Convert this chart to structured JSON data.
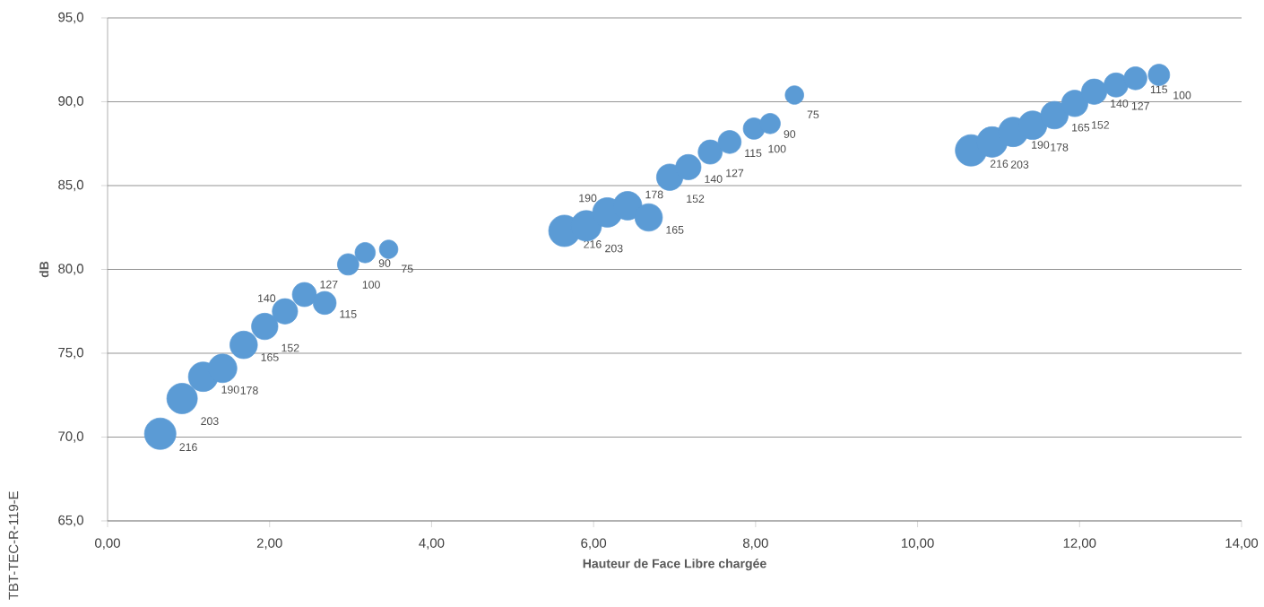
{
  "chart_data": {
    "type": "bubble",
    "xlabel": "Hauteur de Face Libre chargée",
    "ylabel": "dB",
    "annotations": [
      "TBT-TEC-R-119-E"
    ],
    "x": [
      0.65,
      0.92,
      1.18,
      1.42,
      1.68,
      1.94,
      2.19,
      2.43,
      2.68,
      2.97,
      3.18,
      3.47,
      5.64,
      5.91,
      6.17,
      6.42,
      6.68,
      6.94,
      7.17,
      7.44,
      7.68,
      7.98,
      8.18,
      8.48,
      10.66,
      10.92,
      11.18,
      11.42,
      11.69,
      11.94,
      12.18,
      12.45,
      12.69,
      12.98
    ],
    "series": [
      {
        "color": "#5b9bd5",
        "values": [
          70.2,
          72.3,
          73.6,
          74.1,
          75.5,
          76.6,
          77.5,
          78.5,
          78.0,
          80.3,
          81.0,
          81.2,
          82.3,
          82.6,
          83.4,
          83.8,
          83.1,
          85.5,
          86.1,
          87.0,
          87.6,
          88.4,
          88.7,
          90.4,
          87.1,
          87.6,
          88.2,
          88.6,
          89.2,
          89.9,
          90.6,
          91.0,
          91.4,
          91.6
        ],
        "sizes": [
          216,
          203,
          190,
          178,
          165,
          152,
          140,
          127,
          115,
          100,
          90,
          75,
          216,
          203,
          190,
          178,
          165,
          152,
          140,
          127,
          115,
          100,
          90,
          75,
          216,
          203,
          190,
          178,
          165,
          152,
          140,
          127,
          115,
          100
        ],
        "value_labels": [
          "216",
          "203",
          "190",
          "178",
          "165",
          "152",
          "140",
          "127",
          "115",
          "100",
          "90",
          "75",
          "216",
          "203",
          "190",
          "178",
          "165",
          "152",
          "140",
          "127",
          "115",
          "100",
          "90",
          "75",
          "216",
          "203",
          "190",
          "178",
          "165",
          "152",
          "140",
          "127",
          "115",
          "100"
        ]
      }
    ],
    "marker": "circle",
    "grid": "y",
    "xlim": [
      0,
      14
    ],
    "ylim": [
      65,
      95
    ],
    "xticks": [
      {
        "value": 0,
        "label": "0,00"
      },
      {
        "value": 2,
        "label": "2,00"
      },
      {
        "value": 4,
        "label": "4,00"
      },
      {
        "value": 6,
        "label": "6,00"
      },
      {
        "value": 8,
        "label": "8,00"
      },
      {
        "value": 10,
        "label": "10,00"
      },
      {
        "value": 12,
        "label": "12,00"
      },
      {
        "value": 14,
        "label": "14,00"
      }
    ],
    "yticks": [
      {
        "value": 65,
        "label": "65,0"
      },
      {
        "value": 70,
        "label": "70,0"
      },
      {
        "value": 75,
        "label": "75,0"
      },
      {
        "value": 80,
        "label": "80,0"
      },
      {
        "value": 85,
        "label": "85,0"
      },
      {
        "value": 90,
        "label": "90,0"
      },
      {
        "value": 95,
        "label": "95,0"
      }
    ]
  }
}
